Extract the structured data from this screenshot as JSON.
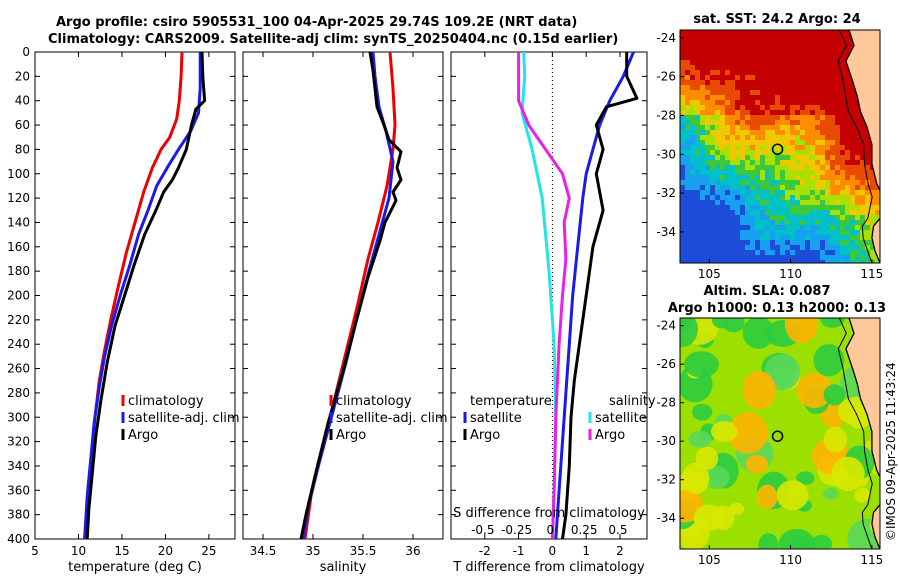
{
  "header": {
    "title_line1": "Argo profile: csiro 5905531_100 04-Apr-2025 29.74S 109.2E (NRT data)",
    "title_line2": "Climatology: CARS2009. Satellite-adj clim: synTS_20250404.nc (0.15d earlier)"
  },
  "credit": "©IMOS 09-Apr-2025 11:43:24",
  "colors": {
    "climatology": "#ee0000",
    "satellite": "#1a1aee",
    "argo": "#000000",
    "cyan": "#22e5e5",
    "magenta": "#e820e8"
  },
  "chart_data": [
    {
      "type": "line",
      "name": "temperature",
      "xlabel": "temperature (deg C)",
      "xlim": [
        5,
        28
      ],
      "ylim": [
        0,
        400
      ],
      "y_inverted": true,
      "xticks": [
        5,
        10,
        15,
        20,
        25
      ],
      "yticks": [
        0,
        20,
        40,
        60,
        80,
        100,
        120,
        140,
        160,
        180,
        200,
        220,
        240,
        260,
        280,
        300,
        320,
        340,
        360,
        380,
        400
      ],
      "legend": [
        "climatology",
        "satellite-adj. clim",
        "Argo"
      ],
      "legend_position": "lower-right",
      "series": [
        {
          "name": "climatology",
          "color": "climatology",
          "points": [
            [
              21.9,
              0
            ],
            [
              21.8,
              20
            ],
            [
              21.6,
              40
            ],
            [
              21.3,
              55
            ],
            [
              20.5,
              70
            ],
            [
              19.5,
              80
            ],
            [
              18.5,
              95
            ],
            [
              17.5,
              115
            ],
            [
              16.5,
              140
            ],
            [
              15.5,
              165
            ],
            [
              14.5,
              195
            ],
            [
              13.7,
              220
            ],
            [
              13.0,
              245
            ],
            [
              12.4,
              270
            ],
            [
              11.9,
              300
            ],
            [
              11.5,
              330
            ],
            [
              11.1,
              360
            ],
            [
              10.8,
              390
            ],
            [
              10.7,
              400
            ]
          ]
        },
        {
          "name": "satellite-adj. clim",
          "color": "satellite",
          "points": [
            [
              24.0,
              0
            ],
            [
              24.0,
              30
            ],
            [
              23.8,
              50
            ],
            [
              22.9,
              65
            ],
            [
              21.5,
              80
            ],
            [
              20.2,
              95
            ],
            [
              19.0,
              110
            ],
            [
              18.0,
              130
            ],
            [
              16.9,
              150
            ],
            [
              15.9,
              175
            ],
            [
              14.8,
              200
            ],
            [
              13.8,
              225
            ],
            [
              13.0,
              250
            ],
            [
              12.4,
              275
            ],
            [
              11.8,
              305
            ],
            [
              11.4,
              335
            ],
            [
              11.0,
              365
            ],
            [
              10.8,
              390
            ],
            [
              10.7,
              400
            ]
          ]
        },
        {
          "name": "Argo",
          "color": "argo",
          "points": [
            [
              24.2,
              0
            ],
            [
              24.3,
              20
            ],
            [
              24.5,
              40
            ],
            [
              23.5,
              47
            ],
            [
              23.0,
              60
            ],
            [
              22.4,
              80
            ],
            [
              21.5,
              95
            ],
            [
              20.8,
              105
            ],
            [
              19.8,
              115
            ],
            [
              18.9,
              130
            ],
            [
              17.6,
              150
            ],
            [
              16.4,
              175
            ],
            [
              15.3,
              200
            ],
            [
              14.2,
              225
            ],
            [
              13.3,
              255
            ],
            [
              12.6,
              285
            ],
            [
              12.0,
              315
            ],
            [
              11.6,
              345
            ],
            [
              11.2,
              375
            ],
            [
              11.0,
              400
            ]
          ]
        }
      ]
    },
    {
      "type": "line",
      "name": "salinity",
      "xlabel": "salinity",
      "xlim": [
        34.3,
        36.3
      ],
      "ylim": [
        0,
        400
      ],
      "y_inverted": true,
      "xticks": [
        34.5,
        35,
        35.5,
        36
      ],
      "legend": [
        "climatology",
        "satellite-adj. clim",
        "Argo"
      ],
      "legend_position": "lower-right",
      "series": [
        {
          "name": "climatology",
          "color": "climatology",
          "points": [
            [
              35.77,
              0
            ],
            [
              35.8,
              30
            ],
            [
              35.82,
              60
            ],
            [
              35.8,
              80
            ],
            [
              35.74,
              110
            ],
            [
              35.65,
              140
            ],
            [
              35.55,
              170
            ],
            [
              35.44,
              210
            ],
            [
              35.32,
              250
            ],
            [
              35.2,
              290
            ],
            [
              35.08,
              330
            ],
            [
              34.98,
              365
            ],
            [
              34.92,
              400
            ]
          ]
        },
        {
          "name": "satellite-adj. clim",
          "color": "satellite",
          "points": [
            [
              35.6,
              0
            ],
            [
              35.62,
              20
            ],
            [
              35.66,
              45
            ],
            [
              35.73,
              65
            ],
            [
              35.8,
              90
            ],
            [
              35.76,
              120
            ],
            [
              35.66,
              150
            ],
            [
              35.56,
              180
            ],
            [
              35.45,
              215
            ],
            [
              35.33,
              255
            ],
            [
              35.2,
              295
            ],
            [
              35.07,
              335
            ],
            [
              34.96,
              370
            ],
            [
              34.9,
              400
            ]
          ]
        },
        {
          "name": "Argo",
          "color": "argo",
          "points": [
            [
              35.57,
              0
            ],
            [
              35.6,
              15
            ],
            [
              35.62,
              30
            ],
            [
              35.64,
              45
            ],
            [
              35.71,
              60
            ],
            [
              35.76,
              72
            ],
            [
              35.88,
              82
            ],
            [
              35.84,
              95
            ],
            [
              35.88,
              105
            ],
            [
              35.8,
              115
            ],
            [
              35.83,
              122
            ],
            [
              35.72,
              140
            ],
            [
              35.67,
              155
            ],
            [
              35.55,
              185
            ],
            [
              35.42,
              225
            ],
            [
              35.29,
              265
            ],
            [
              35.15,
              305
            ],
            [
              35.03,
              345
            ],
            [
              34.93,
              380
            ],
            [
              34.88,
              400
            ]
          ]
        }
      ]
    },
    {
      "type": "line",
      "name": "difference",
      "xlabel": "T difference from climatology",
      "xlabel2": "S difference from climatology",
      "xlim": [
        -3,
        2.8
      ],
      "ylim": [
        0,
        400
      ],
      "y_inverted": true,
      "xticks": [
        -2,
        -1,
        0,
        1,
        2
      ],
      "xticks_s_labels": [
        "-0.5",
        "-0.25",
        "0",
        "0.25",
        "0.5"
      ],
      "legend_temperature_title": "temperature",
      "legend_temperature": [
        "satellite",
        "Argo"
      ],
      "legend_salinity_title": "salinity",
      "legend_salinity": [
        "satellite",
        "Argo"
      ],
      "series": [
        {
          "name": "T satellite",
          "color": "satellite",
          "points": [
            [
              2.4,
              0
            ],
            [
              2.1,
              20
            ],
            [
              1.7,
              40
            ],
            [
              1.4,
              60
            ],
            [
              1.2,
              80
            ],
            [
              1.0,
              100
            ],
            [
              0.9,
              120
            ],
            [
              0.75,
              160
            ],
            [
              0.6,
              200
            ],
            [
              0.5,
              240
            ],
            [
              0.4,
              280
            ],
            [
              0.3,
              320
            ],
            [
              0.2,
              360
            ],
            [
              0.1,
              400
            ]
          ]
        },
        {
          "name": "T Argo",
          "color": "argo",
          "points": [
            [
              2.2,
              0
            ],
            [
              2.2,
              20
            ],
            [
              2.5,
              38
            ],
            [
              1.6,
              45
            ],
            [
              1.3,
              60
            ],
            [
              1.5,
              80
            ],
            [
              1.3,
              100
            ],
            [
              1.5,
              130
            ],
            [
              1.2,
              160
            ],
            [
              1.0,
              200
            ],
            [
              0.8,
              240
            ],
            [
              0.65,
              270
            ],
            [
              0.55,
              300
            ],
            [
              0.5,
              340
            ],
            [
              0.4,
              380
            ],
            [
              0.3,
              400
            ]
          ]
        },
        {
          "name": "S satellite",
          "color": "cyan",
          "points": [
            [
              -0.85,
              0
            ],
            [
              -0.82,
              20
            ],
            [
              -0.9,
              50
            ],
            [
              -0.6,
              80
            ],
            [
              -0.3,
              120
            ],
            [
              -0.1,
              180
            ],
            [
              0.05,
              240
            ],
            [
              0.1,
              300
            ],
            [
              0.05,
              360
            ],
            [
              0.0,
              400
            ]
          ]
        },
        {
          "name": "S Argo",
          "color": "magenta",
          "points": [
            [
              -1.0,
              0
            ],
            [
              -1.0,
              20
            ],
            [
              -1.0,
              40
            ],
            [
              -0.7,
              60
            ],
            [
              -0.2,
              80
            ],
            [
              0.3,
              100
            ],
            [
              0.5,
              120
            ],
            [
              0.35,
              140
            ],
            [
              0.4,
              170
            ],
            [
              0.3,
              200
            ],
            [
              0.2,
              240
            ],
            [
              0.1,
              300
            ],
            [
              0.05,
              360
            ],
            [
              0.0,
              400
            ]
          ]
        }
      ]
    },
    {
      "type": "heatmap",
      "name": "sst-map",
      "title": "sat. SST: 24.2 Argo: 24",
      "xlim": [
        103.2,
        115.5
      ],
      "ylim": [
        -35.6,
        -23.6
      ],
      "xticks": [
        105,
        110,
        115
      ],
      "yticks": [
        -24,
        -26,
        -28,
        -30,
        -32,
        -34
      ],
      "marker": {
        "lon": 109.2,
        "lat": -29.74
      }
    },
    {
      "type": "heatmap",
      "name": "sla-map",
      "title": "Altim. SLA: 0.087",
      "subtitle": "Argo h1000: 0.13 h2000: 0.13",
      "xlim": [
        103.2,
        115.5
      ],
      "ylim": [
        -35.6,
        -23.6
      ],
      "xticks": [
        105,
        110,
        115
      ],
      "yticks": [
        -24,
        -26,
        -28,
        -30,
        -32,
        -34
      ],
      "marker": {
        "lon": 109.2,
        "lat": -29.74
      }
    }
  ]
}
